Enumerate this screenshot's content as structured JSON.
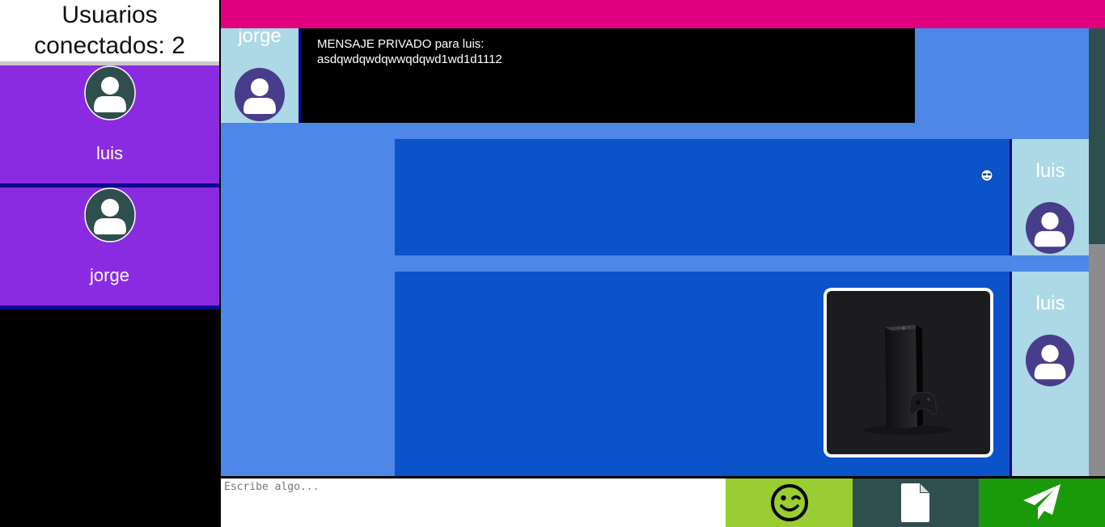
{
  "sidebar": {
    "header": "Usuarios conectados: 2",
    "users": [
      {
        "name": "luis"
      },
      {
        "name": "jorge"
      }
    ]
  },
  "messages": [
    {
      "sender": "jorge",
      "type": "text",
      "line1": "MENSAJE PRIVADO para luis:",
      "line2": "asdqwdqwdqwwqdqwd1wd1d1112"
    },
    {
      "sender": "luis",
      "type": "emoji",
      "icon": "sunglasses-emoji-icon"
    },
    {
      "sender": "luis",
      "type": "image",
      "icon": "game-console-image"
    }
  ],
  "composer": {
    "placeholder": "Escribe algo..."
  },
  "colors": {
    "sidebar_card": "#8a2be2",
    "topbar": "#e0007f",
    "chat_bg": "#4d88e8",
    "bubble": "#0a53c8",
    "emoji_button": "#9acd32",
    "file_button": "#2f4f4f",
    "send_button": "#1a9a0a"
  }
}
